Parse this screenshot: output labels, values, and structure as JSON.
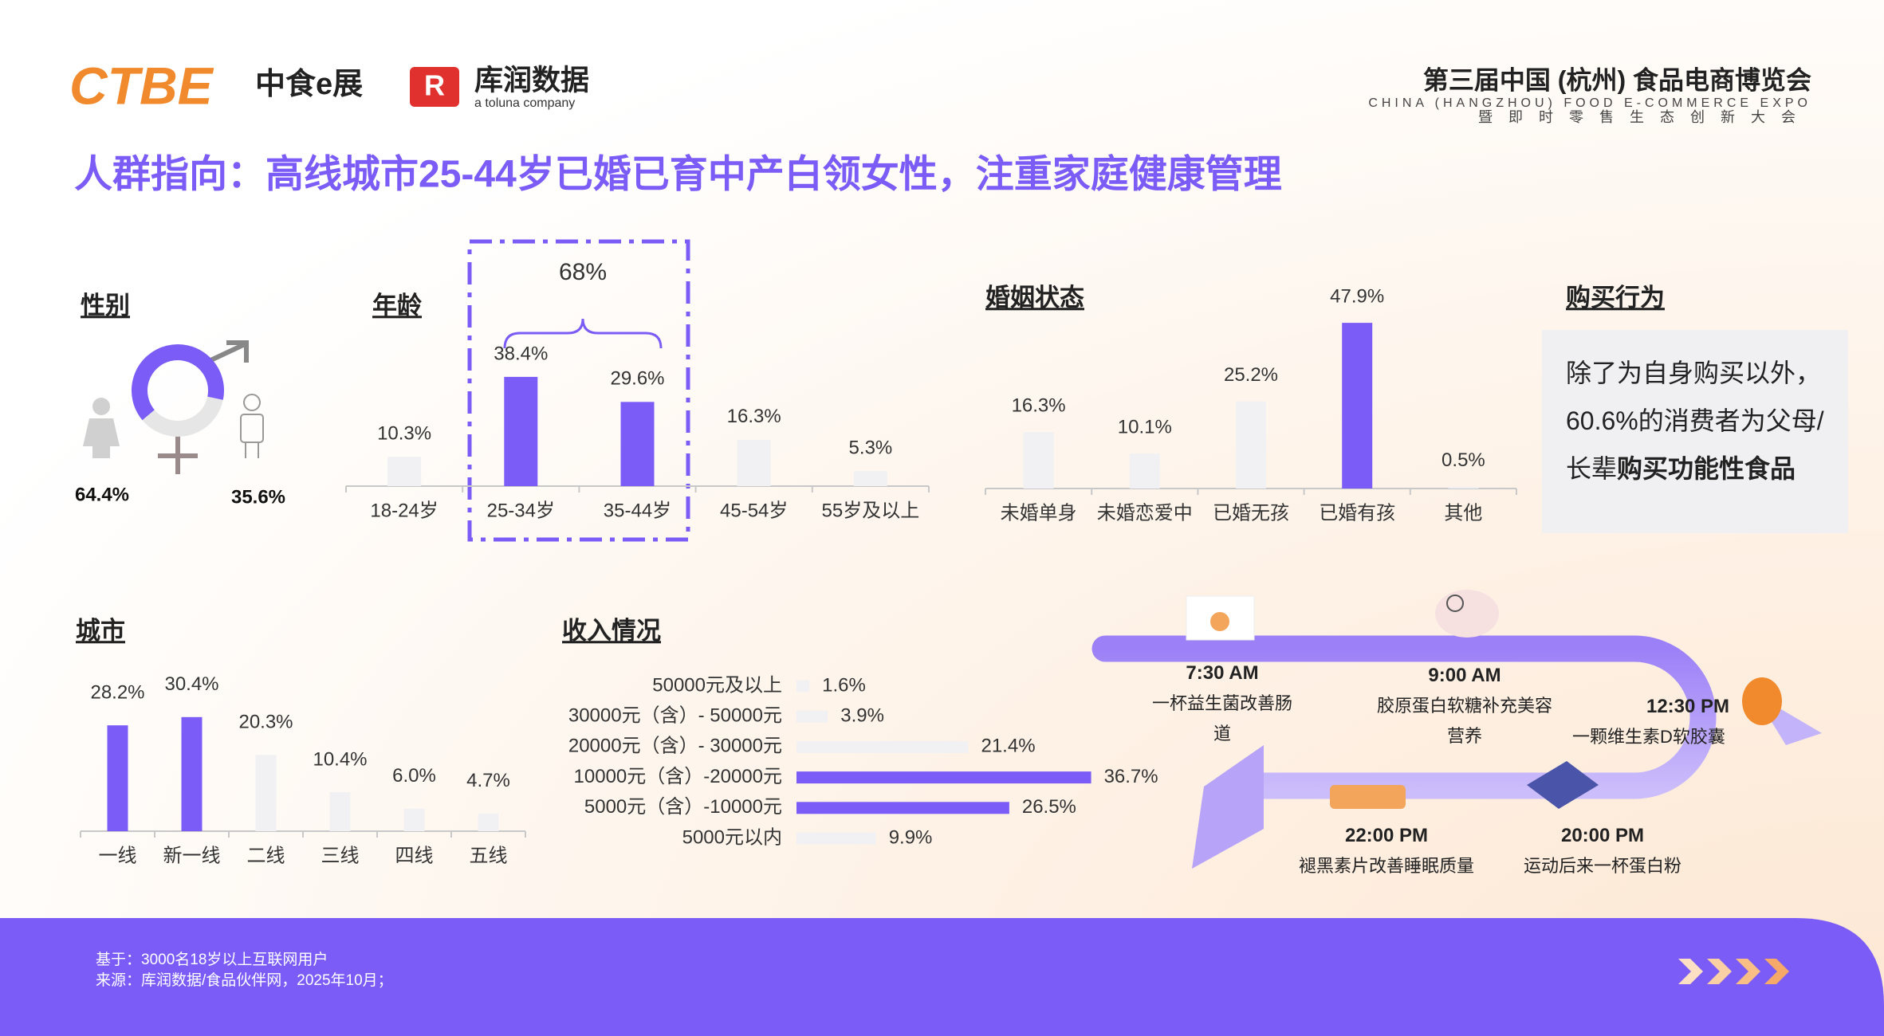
{
  "header": {
    "expo_logo": "CTBE",
    "expo_name": "中食e展",
    "partner_name": "库润数据",
    "partner_tagline": "a toluna company",
    "event_title": "第三届中国 (杭州) 食品电商博览会",
    "event_english": "CHINA (HANGZHOU) FOOD E-COMMERCE EXPO",
    "event_subtitle": "暨即时零售生态创新大会"
  },
  "title": "人群指向：高线城市25-44岁已婚已育中产白领女性，注重家庭健康管理",
  "chart_data": [
    {
      "type": "donut",
      "title": "性别",
      "values": [
        64.4,
        35.6
      ],
      "value_labels": [
        "64.4%",
        "35.6%"
      ],
      "colors": [
        "#7b5cf6",
        "#e6e6e6"
      ]
    },
    {
      "type": "bar",
      "title": "年龄",
      "annotation": "68%",
      "categories": [
        "18-24岁",
        "25-34岁",
        "35-44岁",
        "45-54岁",
        "55岁及以上"
      ],
      "values": [
        10.3,
        38.4,
        29.6,
        16.3,
        5.3
      ],
      "value_labels": [
        "10.3%",
        "38.4%",
        "29.6%",
        "16.3%",
        "5.3%"
      ],
      "colors": [
        "#f1f1f3",
        "#7b5cf6",
        "#7b5cf6",
        "#f1f1f3",
        "#f1f1f3"
      ]
    },
    {
      "type": "bar",
      "title": "婚姻状态",
      "categories": [
        "未婚单身",
        "未婚恋爱中",
        "已婚无孩",
        "已婚有孩",
        "其他"
      ],
      "values": [
        16.3,
        10.1,
        25.2,
        47.9,
        0.5
      ],
      "value_labels": [
        "16.3%",
        "10.1%",
        "25.2%",
        "47.9%",
        "0.5%"
      ],
      "colors": [
        "#f1f1f3",
        "#f1f1f3",
        "#f1f1f3",
        "#7b5cf6",
        "#f1f1f3"
      ]
    },
    {
      "type": "bar",
      "title": "城市",
      "categories": [
        "一线",
        "新一线",
        "二线",
        "三线",
        "四线",
        "五线"
      ],
      "values": [
        28.2,
        30.4,
        20.3,
        10.4,
        6.0,
        4.7
      ],
      "value_labels": [
        "28.2%",
        "30.4%",
        "20.3%",
        "10.4%",
        "6.0%",
        "4.7%"
      ],
      "colors": [
        "#7b5cf6",
        "#7b5cf6",
        "#f1f1f3",
        "#f1f1f3",
        "#f1f1f3",
        "#f1f1f3"
      ]
    },
    {
      "type": "barh",
      "title": "收入情况",
      "categories": [
        "50000元及以上",
        "30000元（含）- 50000元",
        "20000元（含）- 30000元",
        "10000元（含）-20000元",
        "5000元（含）-10000元",
        "5000元以内"
      ],
      "values": [
        1.6,
        3.9,
        21.4,
        36.7,
        26.5,
        9.9
      ],
      "value_labels": [
        "1.6%",
        "3.9%",
        "21.4%",
        "36.7%",
        "26.5%",
        "9.9%"
      ],
      "colors": [
        "#f1f1f3",
        "#f1f1f3",
        "#f1f1f3",
        "#7b5cf6",
        "#7b5cf6",
        "#f1f1f3"
      ]
    }
  ],
  "purchase": {
    "title": "购买行为",
    "text": "除了为自身购买以外，60.6%的消费者为父母/长辈",
    "emphasis": "购买功能性食品"
  },
  "timeline": [
    {
      "time": "7:30 AM",
      "text": "一杯益生菌改善肠道"
    },
    {
      "time": "9:00 AM",
      "text": "胶原蛋白软糖补充美容营养"
    },
    {
      "time": "12:30 PM",
      "text": "一颗维生素D软胶囊"
    },
    {
      "time": "20:00 PM",
      "text": "运动后来一杯蛋白粉"
    },
    {
      "time": "22:00 PM",
      "text": "褪黑素片改善睡眠质量"
    }
  ],
  "footer": {
    "base": "基于：3000名18岁以上互联网用户",
    "source": "来源：库润数据/食品伙伴网，2025年10月；"
  }
}
